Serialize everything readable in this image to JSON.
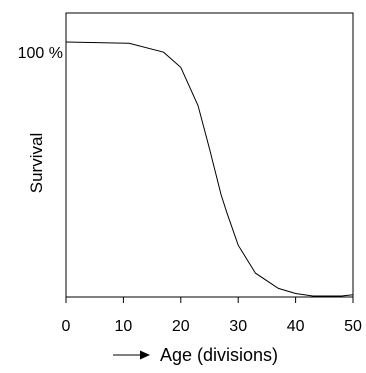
{
  "chart_data": {
    "type": "line",
    "title": "",
    "xlabel": "Age (divisions)",
    "ylabel": "Survival",
    "y_tick_label": "100 %",
    "xlim": [
      0,
      50
    ],
    "ylim": [
      0,
      100
    ],
    "x_ticks": [
      0,
      10,
      20,
      30,
      40,
      50
    ],
    "grid": false,
    "series": [
      {
        "x": [
          0,
          11,
          17,
          20,
          23,
          25,
          27,
          28,
          30,
          33,
          37,
          40,
          43,
          45,
          48,
          50
        ],
        "y": [
          100,
          99.5,
          96,
          90,
          75,
          58,
          40,
          33,
          20,
          9,
          3,
          1,
          0,
          0,
          0,
          0.5
        ]
      }
    ]
  }
}
